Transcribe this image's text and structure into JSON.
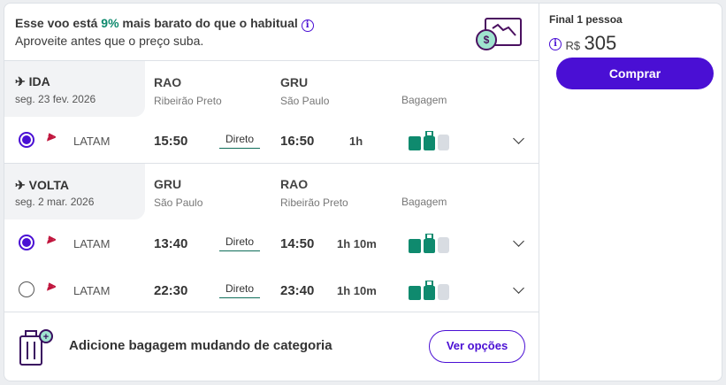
{
  "banner": {
    "line1_pre": "Esse voo está ",
    "line1_pct": "9%",
    "line1_post": " mais barato do que o habitual",
    "line2": "Aproveite antes que o preço suba.",
    "icon": "price-drop-icon"
  },
  "price": {
    "label": "Final 1 pessoa",
    "currency": "R$",
    "amount": "305",
    "buy_label": "Comprar"
  },
  "outbound": {
    "label": "IDA",
    "date": "seg. 23 fev. 2026",
    "from_code": "RAO",
    "from_city": "Ribeirão Preto",
    "to_code": "GRU",
    "to_city": "São Paulo",
    "baggage_label": "Bagagem",
    "flights": [
      {
        "selected": true,
        "airline": "LATAM",
        "dep": "15:50",
        "stops": "Direto",
        "arr": "16:50",
        "duration": "1h"
      }
    ]
  },
  "inbound": {
    "label": "VOLTA",
    "date": "seg. 2 mar. 2026",
    "from_code": "GRU",
    "from_city": "São Paulo",
    "to_code": "RAO",
    "to_city": "Ribeirão Preto",
    "baggage_label": "Bagagem",
    "flights": [
      {
        "selected": true,
        "airline": "LATAM",
        "dep": "13:40",
        "stops": "Direto",
        "arr": "14:50",
        "duration": "1h 10m"
      },
      {
        "selected": false,
        "airline": "LATAM",
        "dep": "22:30",
        "stops": "Direto",
        "arr": "23:40",
        "duration": "1h 10m"
      }
    ]
  },
  "baggage_upsell": {
    "text": "Adicione bagagem mudando de categoria",
    "button": "Ver opções"
  },
  "colors": {
    "accent": "#4a0fd4",
    "green": "#0f8a6e",
    "baggage_included": "#0f8a6e",
    "baggage_excluded": "#d8dce2"
  }
}
